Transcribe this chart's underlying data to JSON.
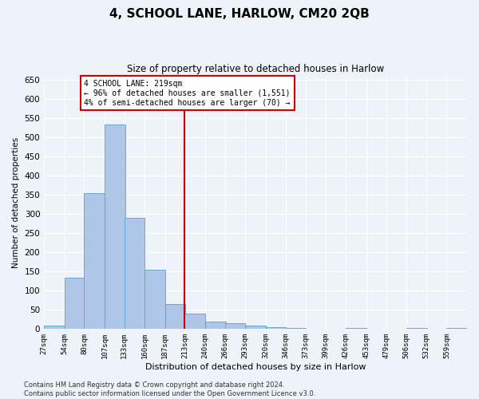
{
  "title": "4, SCHOOL LANE, HARLOW, CM20 2QB",
  "subtitle": "Size of property relative to detached houses in Harlow",
  "xlabel": "Distribution of detached houses by size in Harlow",
  "ylabel": "Number of detached properties",
  "bin_labels": [
    "27sqm",
    "54sqm",
    "80sqm",
    "107sqm",
    "133sqm",
    "160sqm",
    "187sqm",
    "213sqm",
    "240sqm",
    "266sqm",
    "293sqm",
    "320sqm",
    "346sqm",
    "373sqm",
    "399sqm",
    "426sqm",
    "453sqm",
    "479sqm",
    "506sqm",
    "532sqm",
    "559sqm"
  ],
  "bin_edges": [
    27,
    54,
    80,
    107,
    133,
    160,
    187,
    213,
    240,
    266,
    293,
    320,
    346,
    373,
    399,
    426,
    453,
    479,
    506,
    532,
    559
  ],
  "bar_values": [
    10,
    135,
    355,
    535,
    290,
    155,
    65,
    40,
    20,
    15,
    10,
    5,
    2,
    0,
    0,
    2,
    0,
    0,
    3,
    0,
    2
  ],
  "bar_color": "#aec6e8",
  "bar_edge_color": "#5a9fd4",
  "vline_color": "#cc0000",
  "vline_x": 213,
  "annotation_text": "4 SCHOOL LANE: 219sqm\n← 96% of detached houses are smaller (1,551)\n4% of semi-detached houses are larger (70) →",
  "annotation_box_color": "#ffffff",
  "annotation_box_edge": "#cc0000",
  "ylim": [
    0,
    660
  ],
  "yticks": [
    0,
    50,
    100,
    150,
    200,
    250,
    300,
    350,
    400,
    450,
    500,
    550,
    600,
    650
  ],
  "background_color": "#eef2f9",
  "grid_color": "#ffffff",
  "footer_line1": "Contains HM Land Registry data © Crown copyright and database right 2024.",
  "footer_line2": "Contains public sector information licensed under the Open Government Licence v3.0."
}
